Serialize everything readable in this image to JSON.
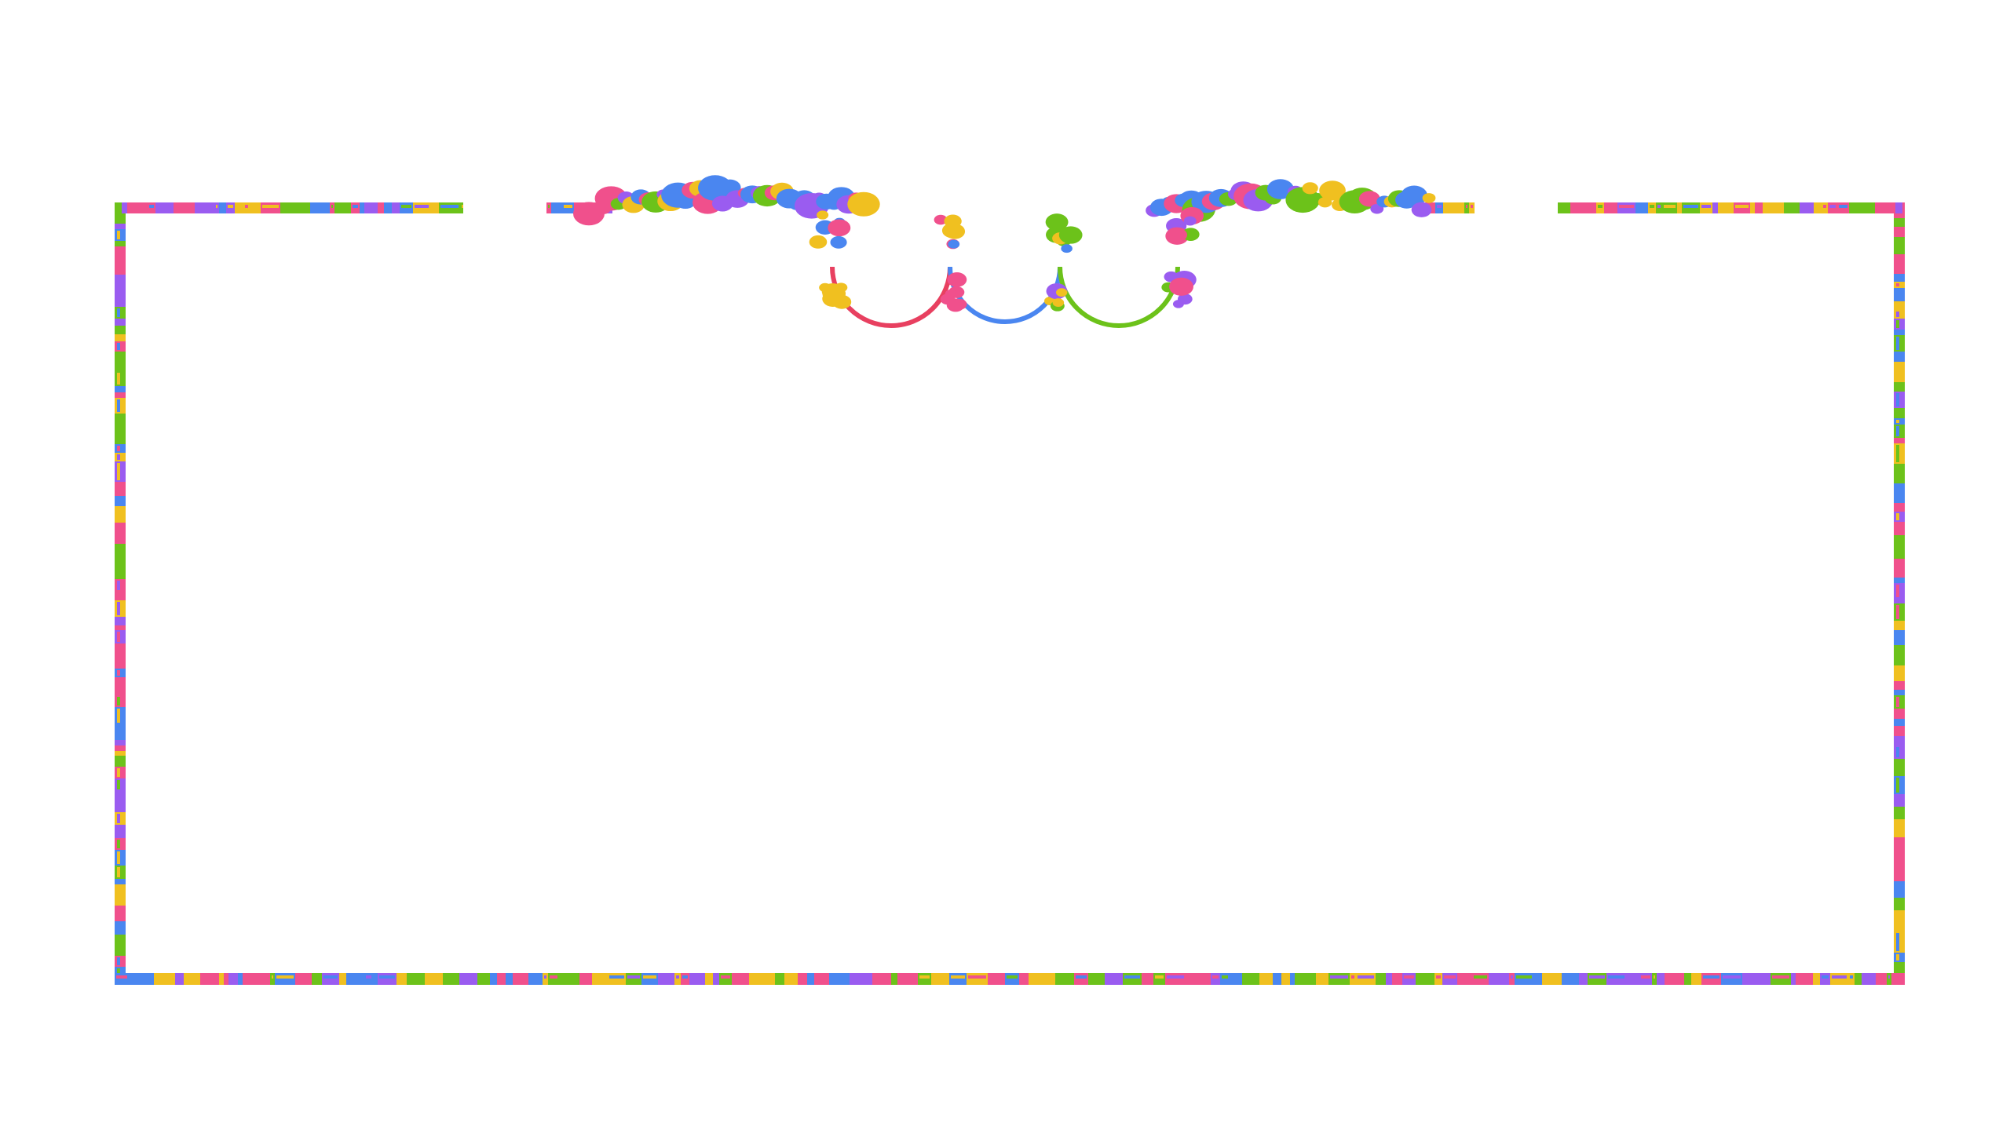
{
  "palette": {
    "background": "#ffffff",
    "pink": "#f0508c",
    "blue": "#4a86f0",
    "green": "#6cc21a",
    "yellow": "#f0c020",
    "purple": "#9a5cf0",
    "red": "#e84060"
  },
  "decor": {
    "style": "pixel-art multicolor ornamental frame",
    "icon": "ornate-frame-icon"
  }
}
